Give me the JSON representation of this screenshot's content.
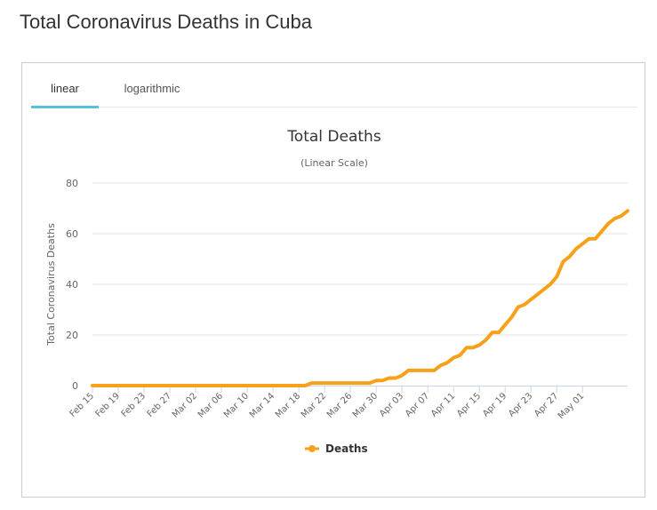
{
  "page": {
    "title": "Total Coronavirus Deaths in Cuba"
  },
  "tabs": [
    {
      "label": "linear",
      "active": true
    },
    {
      "label": "logarithmic",
      "active": false
    }
  ],
  "colors": {
    "series": "#f7a11a",
    "tab_accent": "#5bc0de",
    "grid": "#e6e6e6"
  },
  "chart_data": {
    "type": "line",
    "title": "Total Deaths",
    "subtitle": "(Linear Scale)",
    "xlabel": "",
    "ylabel": "Total Coronavirus Deaths",
    "ylim": [
      0,
      80
    ],
    "yticks": [
      0,
      20,
      40,
      60,
      80
    ],
    "grid": true,
    "legend_position": "bottom-center",
    "x_tick_labels": [
      "Feb 15",
      "Feb 19",
      "Feb 23",
      "Feb 27",
      "Mar 02",
      "Mar 06",
      "Mar 10",
      "Mar 14",
      "Mar 18",
      "Mar 22",
      "Mar 26",
      "Mar 30",
      "Apr 03",
      "Apr 07",
      "Apr 11",
      "Apr 15",
      "Apr 19",
      "Apr 23",
      "Apr 27",
      "May 01"
    ],
    "x_tick_every": 4,
    "series": [
      {
        "name": "Deaths",
        "values": [
          0,
          0,
          0,
          0,
          0,
          0,
          0,
          0,
          0,
          0,
          0,
          0,
          0,
          0,
          0,
          0,
          0,
          0,
          0,
          0,
          0,
          0,
          0,
          0,
          0,
          0,
          0,
          0,
          0,
          0,
          0,
          0,
          0,
          0,
          1,
          1,
          1,
          1,
          1,
          1,
          1,
          1,
          1,
          1,
          2,
          2,
          3,
          3,
          4,
          6,
          6,
          6,
          6,
          6,
          8,
          9,
          11,
          12,
          15,
          15,
          16,
          18,
          21,
          21,
          24,
          27,
          31,
          32,
          34,
          36,
          38,
          40,
          43,
          49,
          51,
          54,
          56,
          58,
          58,
          61,
          64,
          66,
          67,
          69
        ]
      }
    ]
  }
}
